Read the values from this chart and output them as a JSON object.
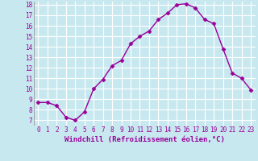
{
  "x": [
    0,
    1,
    2,
    3,
    4,
    5,
    6,
    7,
    8,
    9,
    10,
    11,
    12,
    13,
    14,
    15,
    16,
    17,
    18,
    19,
    20,
    21,
    22,
    23
  ],
  "y": [
    8.7,
    8.7,
    8.4,
    7.3,
    7.0,
    7.8,
    10.0,
    10.9,
    12.2,
    12.7,
    14.3,
    15.0,
    15.5,
    16.6,
    17.2,
    18.0,
    18.1,
    17.7,
    16.6,
    16.2,
    13.8,
    11.5,
    11.0,
    9.9
  ],
  "color": "#990099",
  "bg_color": "#c8e8f0",
  "grid_color": "#ffffff",
  "xlabel": "Windchill (Refroidissement éolien,°C)",
  "ylim": [
    7,
    18
  ],
  "xlim": [
    -0.5,
    23.5
  ],
  "yticks": [
    7,
    8,
    9,
    10,
    11,
    12,
    13,
    14,
    15,
    16,
    17,
    18
  ],
  "xticks": [
    0,
    1,
    2,
    3,
    4,
    5,
    6,
    7,
    8,
    9,
    10,
    11,
    12,
    13,
    14,
    15,
    16,
    17,
    18,
    19,
    20,
    21,
    22,
    23
  ],
  "marker": "D",
  "marker_size": 2.5,
  "line_width": 1.0,
  "xlabel_fontsize": 6.5,
  "tick_fontsize": 5.5
}
